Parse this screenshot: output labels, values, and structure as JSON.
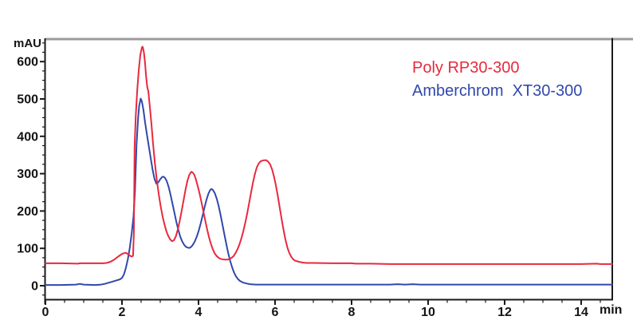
{
  "colors": {
    "background": "#ffffff",
    "axis": "#1a1a1a",
    "top_border_gray": "#9b9b9b",
    "red_series": "#e8293e",
    "blue_series": "#3148ab"
  },
  "axis": {
    "y_unit": "mAU",
    "x_unit": "min",
    "y_ticks": [
      0,
      100,
      200,
      300,
      400,
      500,
      600
    ],
    "x_ticks": [
      0,
      2,
      4,
      6,
      8,
      10,
      12,
      14
    ],
    "y_minor_step": 25,
    "y_minor_min": -25,
    "y_minor_max": 650,
    "x_minor_step": 0.5,
    "x_minor_max": 14.5
  },
  "chart_data": {
    "type": "line",
    "title": "",
    "xlabel": "min",
    "ylabel": "mAU",
    "xlim": [
      0,
      14.8
    ],
    "ylim": [
      0,
      600
    ],
    "grid": false,
    "legend_position": "top-right",
    "peaks_note": "overlaid chromatograms; red peaks at ~2.5 min (640 mAU), ~3.8 min (305 mAU), ~5.8 min (336 mAU); blue peaks at ~2.5 min (501 mAU), ~3.1 min (292 mAU), ~4.3 min (259 mAU)",
    "series": [
      {
        "name": "Poly RP30-300",
        "color": "#e8293e",
        "baseline_mAU": 60,
        "points": [
          [
            0,
            60
          ],
          [
            0.4,
            60
          ],
          [
            0.85,
            59
          ],
          [
            0.9,
            60
          ],
          [
            1.3,
            60
          ],
          [
            1.5,
            60
          ],
          [
            1.6,
            61
          ],
          [
            1.7,
            64
          ],
          [
            1.8,
            70
          ],
          [
            1.9,
            78
          ],
          [
            2.0,
            85
          ],
          [
            2.05,
            87
          ],
          [
            2.1,
            88
          ],
          [
            2.15,
            85
          ],
          [
            2.2,
            81
          ],
          [
            2.25,
            78
          ],
          [
            2.29,
            80
          ],
          [
            2.31,
            140
          ],
          [
            2.32,
            260
          ],
          [
            2.33,
            370
          ],
          [
            2.36,
            455
          ],
          [
            2.4,
            525
          ],
          [
            2.44,
            578
          ],
          [
            2.48,
            618
          ],
          [
            2.52,
            638
          ],
          [
            2.54,
            640
          ],
          [
            2.57,
            626
          ],
          [
            2.6,
            600
          ],
          [
            2.63,
            562
          ],
          [
            2.66,
            532
          ],
          [
            2.69,
            520
          ],
          [
            2.73,
            478
          ],
          [
            2.77,
            432
          ],
          [
            2.81,
            382
          ],
          [
            2.86,
            328
          ],
          [
            2.91,
            283
          ],
          [
            2.96,
            245
          ],
          [
            3.01,
            213
          ],
          [
            3.06,
            186
          ],
          [
            3.11,
            164
          ],
          [
            3.16,
            146
          ],
          [
            3.21,
            133
          ],
          [
            3.26,
            124
          ],
          [
            3.31,
            119
          ],
          [
            3.36,
            122
          ],
          [
            3.41,
            133
          ],
          [
            3.46,
            151
          ],
          [
            3.51,
            174
          ],
          [
            3.56,
            201
          ],
          [
            3.61,
            229
          ],
          [
            3.66,
            257
          ],
          [
            3.71,
            281
          ],
          [
            3.76,
            297
          ],
          [
            3.81,
            305
          ],
          [
            3.85,
            303
          ],
          [
            3.89,
            297
          ],
          [
            3.93,
            286
          ],
          [
            3.97,
            270
          ],
          [
            4.02,
            250
          ],
          [
            4.07,
            227
          ],
          [
            4.12,
            202
          ],
          [
            4.17,
            177
          ],
          [
            4.22,
            153
          ],
          [
            4.27,
            131
          ],
          [
            4.32,
            113
          ],
          [
            4.37,
            98
          ],
          [
            4.42,
            87
          ],
          [
            4.47,
            80
          ],
          [
            4.52,
            75
          ],
          [
            4.57,
            72
          ],
          [
            4.62,
            71
          ],
          [
            4.67,
            70
          ],
          [
            4.72,
            70
          ],
          [
            4.77,
            70
          ],
          [
            4.82,
            72
          ],
          [
            4.87,
            75
          ],
          [
            4.92,
            80
          ],
          [
            4.97,
            88
          ],
          [
            5.02,
            98
          ],
          [
            5.07,
            111
          ],
          [
            5.12,
            127
          ],
          [
            5.17,
            146
          ],
          [
            5.22,
            168
          ],
          [
            5.27,
            193
          ],
          [
            5.32,
            220
          ],
          [
            5.37,
            248
          ],
          [
            5.42,
            275
          ],
          [
            5.47,
            298
          ],
          [
            5.52,
            316
          ],
          [
            5.57,
            327
          ],
          [
            5.62,
            333
          ],
          [
            5.67,
            335
          ],
          [
            5.72,
            336
          ],
          [
            5.77,
            336
          ],
          [
            5.82,
            332
          ],
          [
            5.87,
            325
          ],
          [
            5.92,
            312
          ],
          [
            5.97,
            293
          ],
          [
            6.02,
            269
          ],
          [
            6.07,
            241
          ],
          [
            6.12,
            210
          ],
          [
            6.17,
            179
          ],
          [
            6.22,
            150
          ],
          [
            6.27,
            124
          ],
          [
            6.32,
            103
          ],
          [
            6.37,
            88
          ],
          [
            6.42,
            78
          ],
          [
            6.47,
            71
          ],
          [
            6.52,
            67
          ],
          [
            6.62,
            64
          ],
          [
            6.72,
            62
          ],
          [
            6.82,
            61
          ],
          [
            7.0,
            61
          ],
          [
            7.5,
            60
          ],
          [
            8.0,
            60
          ],
          [
            8.1,
            59
          ],
          [
            8.5,
            59
          ],
          [
            9.0,
            58
          ],
          [
            9.5,
            58
          ],
          [
            10.0,
            58
          ],
          [
            10.5,
            58
          ],
          [
            11.0,
            58
          ],
          [
            11.5,
            58
          ],
          [
            12.0,
            58
          ],
          [
            12.5,
            58
          ],
          [
            13.0,
            58
          ],
          [
            13.5,
            58
          ],
          [
            14.0,
            58
          ],
          [
            14.4,
            59
          ],
          [
            14.5,
            58
          ],
          [
            14.81,
            58
          ]
        ]
      },
      {
        "name": "Amberchrom  XT30-300",
        "color": "#3148ab",
        "baseline_mAU": 2,
        "points": [
          [
            0,
            2
          ],
          [
            0.4,
            2
          ],
          [
            0.8,
            3
          ],
          [
            0.9,
            5
          ],
          [
            1.0,
            3
          ],
          [
            1.3,
            2
          ],
          [
            1.45,
            3
          ],
          [
            1.55,
            5
          ],
          [
            1.65,
            8
          ],
          [
            1.75,
            11
          ],
          [
            1.85,
            14
          ],
          [
            1.95,
            17
          ],
          [
            2.0,
            21
          ],
          [
            2.05,
            30
          ],
          [
            2.1,
            47
          ],
          [
            2.15,
            69
          ],
          [
            2.2,
            99
          ],
          [
            2.25,
            137
          ],
          [
            2.3,
            184
          ],
          [
            2.34,
            252
          ],
          [
            2.38,
            375
          ],
          [
            2.42,
            448
          ],
          [
            2.45,
            482
          ],
          [
            2.49,
            501
          ],
          [
            2.52,
            493
          ],
          [
            2.56,
            471
          ],
          [
            2.6,
            440
          ],
          [
            2.65,
            406
          ],
          [
            2.7,
            374
          ],
          [
            2.75,
            342
          ],
          [
            2.8,
            311
          ],
          [
            2.85,
            286
          ],
          [
            2.9,
            273
          ],
          [
            2.95,
            277
          ],
          [
            3.0,
            285
          ],
          [
            3.05,
            291
          ],
          [
            3.08,
            292
          ],
          [
            3.12,
            289
          ],
          [
            3.17,
            280
          ],
          [
            3.22,
            264
          ],
          [
            3.27,
            243
          ],
          [
            3.32,
            219
          ],
          [
            3.37,
            195
          ],
          [
            3.42,
            171
          ],
          [
            3.47,
            150
          ],
          [
            3.52,
            132
          ],
          [
            3.57,
            119
          ],
          [
            3.62,
            110
          ],
          [
            3.67,
            104
          ],
          [
            3.72,
            102
          ],
          [
            3.76,
            101
          ],
          [
            3.81,
            104
          ],
          [
            3.86,
            111
          ],
          [
            3.91,
            120
          ],
          [
            3.96,
            133
          ],
          [
            4.01,
            149
          ],
          [
            4.06,
            168
          ],
          [
            4.11,
            189
          ],
          [
            4.16,
            211
          ],
          [
            4.21,
            231
          ],
          [
            4.26,
            247
          ],
          [
            4.31,
            257
          ],
          [
            4.34,
            259
          ],
          [
            4.38,
            256
          ],
          [
            4.43,
            247
          ],
          [
            4.48,
            232
          ],
          [
            4.53,
            212
          ],
          [
            4.58,
            188
          ],
          [
            4.63,
            162
          ],
          [
            4.68,
            136
          ],
          [
            4.73,
            110
          ],
          [
            4.78,
            86
          ],
          [
            4.83,
            66
          ],
          [
            4.88,
            49
          ],
          [
            4.93,
            35
          ],
          [
            4.98,
            25
          ],
          [
            5.03,
            18
          ],
          [
            5.08,
            13
          ],
          [
            5.15,
            9
          ],
          [
            5.25,
            6
          ],
          [
            5.35,
            4
          ],
          [
            5.5,
            3
          ],
          [
            5.7,
            3
          ],
          [
            6.0,
            3
          ],
          [
            6.5,
            3
          ],
          [
            7.0,
            3
          ],
          [
            7.5,
            3
          ],
          [
            8.0,
            3
          ],
          [
            8.5,
            3
          ],
          [
            9.0,
            3
          ],
          [
            9.2,
            4
          ],
          [
            9.4,
            3
          ],
          [
            9.6,
            4
          ],
          [
            9.8,
            3
          ],
          [
            10.0,
            3
          ],
          [
            10.5,
            3
          ],
          [
            11.0,
            3
          ],
          [
            11.5,
            3
          ],
          [
            12.0,
            3
          ],
          [
            12.5,
            3
          ],
          [
            13.0,
            3
          ],
          [
            13.5,
            3
          ],
          [
            14.0,
            3
          ],
          [
            14.5,
            3
          ],
          [
            14.81,
            3
          ]
        ]
      }
    ]
  }
}
